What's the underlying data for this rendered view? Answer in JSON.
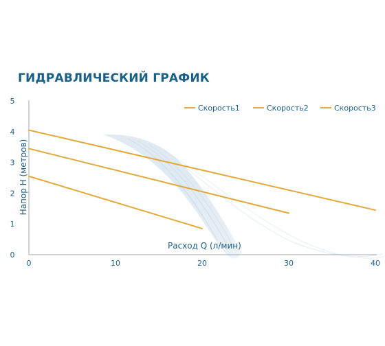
{
  "chart_data": {
    "type": "line",
    "title": "ГИДРАВЛИЧЕСКИЙ ГРАФИК",
    "xlabel": "Расход Q (л/мин)",
    "ylabel": "Напор H (метров)",
    "xlim": [
      0,
      40
    ],
    "ylim": [
      0,
      5
    ],
    "x_ticks": [
      0,
      10,
      20,
      30,
      40
    ],
    "y_ticks": [
      0,
      1,
      2,
      3,
      4,
      5
    ],
    "grid": false,
    "legend_position": "top-right",
    "line_color": "#e2a93a",
    "series": [
      {
        "name": "Скорость1",
        "x": [
          0,
          20
        ],
        "y": [
          2.55,
          0.85
        ]
      },
      {
        "name": "Скорость2",
        "x": [
          0,
          30
        ],
        "y": [
          3.45,
          1.35
        ]
      },
      {
        "name": "Скорость3",
        "x": [
          0,
          40
        ],
        "y": [
          4.05,
          1.45
        ]
      }
    ]
  }
}
